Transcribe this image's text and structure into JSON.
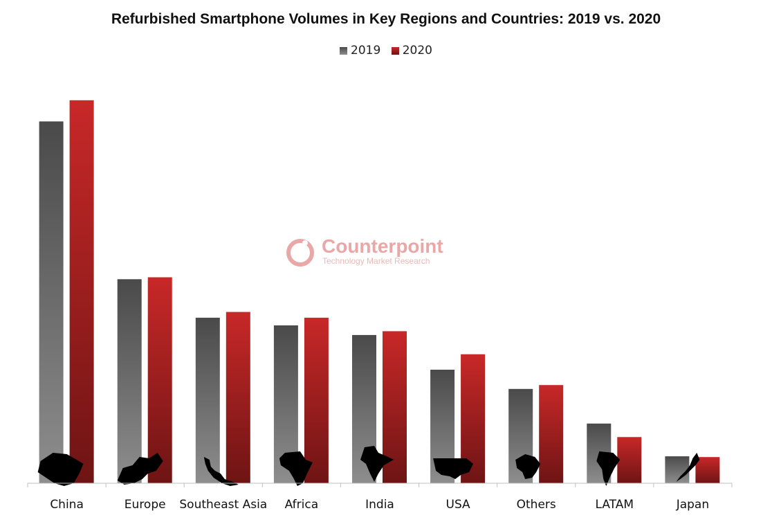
{
  "chart_data": {
    "type": "bar",
    "title": "Refurbished Smartphone Volumes in Key Regions and Countries: 2019 vs. 2020",
    "categories": [
      "China",
      "Europe",
      "Southeast Asia",
      "Africa",
      "India",
      "USA",
      "Others",
      "LATAM",
      "Japan"
    ],
    "series": [
      {
        "name": "2019",
        "values": [
          94,
          53,
          43,
          41,
          38.5,
          29.5,
          24.5,
          15.5,
          7
        ]
      },
      {
        "name": "2020",
        "values": [
          99.5,
          53.5,
          44.5,
          43,
          39.5,
          33.5,
          25.5,
          12,
          6.8
        ]
      }
    ],
    "ylim": [
      0,
      100
    ],
    "xlabel": "",
    "ylabel": "",
    "legend_position": "top-center",
    "grid": false,
    "colors": {
      "2019": [
        "#4a4a4a",
        "#8e8e8e"
      ],
      "2020": [
        "#c82828",
        "#6e1414"
      ]
    }
  },
  "watermark": {
    "name": "Counterpoint",
    "tagline": "Technology Market Research"
  }
}
